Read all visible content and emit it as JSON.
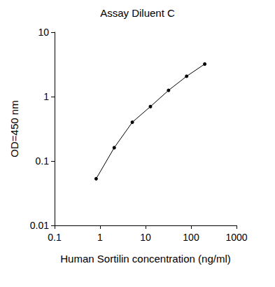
{
  "chart_data": {
    "type": "line",
    "title": "Assay Diluent C",
    "x_label": "Human Sortilin concentration (ng/ml)",
    "y_label": "OD=450 nm",
    "x": [
      0.82,
      2.05,
      5.12,
      12.8,
      32,
      80,
      200
    ],
    "values": [
      0.053,
      0.161,
      0.4,
      0.7,
      1.25,
      2.07,
      3.2
    ],
    "color": "#000000",
    "marker": "circle",
    "line_style": "solid",
    "log": true,
    "grid": false,
    "xlim": [
      0.1,
      1000
    ],
    "xticks": [
      0.1,
      1,
      10,
      100,
      1000
    ],
    "ylim": [
      0.01,
      10
    ],
    "yticks": [
      0.01,
      0.1,
      1,
      10
    ]
  }
}
